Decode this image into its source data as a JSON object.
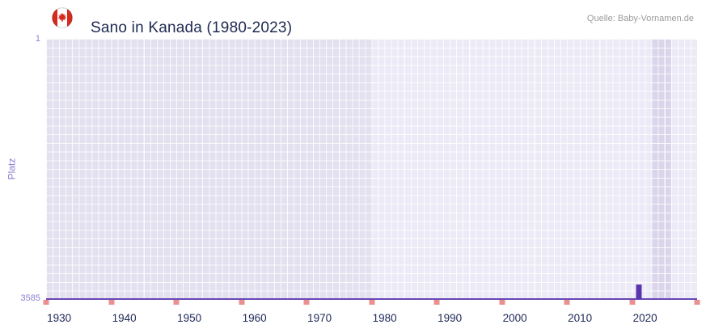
{
  "header": {
    "title": "Sano in Kanada (1980-2023)",
    "source": "Quelle: Baby-Vornamen.de"
  },
  "chart_data": {
    "type": "bar",
    "title": "Sano in Kanada (1980-2023)",
    "ylabel": "Platz",
    "y_axis": {
      "top_label": "1",
      "bottom_label": "3585",
      "min": 1,
      "max": 3585,
      "inverted": true
    },
    "x_range": {
      "min": 1928,
      "max": 2028
    },
    "x_ticks": [
      1930,
      1940,
      1950,
      1960,
      1970,
      1980,
      1990,
      2000,
      2010,
      2020
    ],
    "series": [
      {
        "name": "Platz",
        "points": [
          {
            "year": 2019,
            "rank": 3385
          }
        ]
      }
    ],
    "no_rank_marker_years": [
      1928,
      1938,
      1948,
      1958,
      1968,
      1978,
      1988,
      1998,
      2008,
      2018,
      2028
    ],
    "regions": {
      "no_data": {
        "from": 1928,
        "to": 1978
      },
      "highlight": {
        "from": 2021,
        "to": 2024
      }
    },
    "grid": true,
    "legend": "none",
    "colors": {
      "bar": "#5b35ad",
      "baseline": "#6847b8",
      "marker": "#ec8f8f",
      "plot_bg": "#eceaf6",
      "no_data_bg": "#e3e0ef",
      "highlight_bg": "#dbd5ec",
      "axis_text": "#8b7fd0",
      "x_tick_text": "#202a5a",
      "flag_red": "#d52b1e"
    }
  }
}
